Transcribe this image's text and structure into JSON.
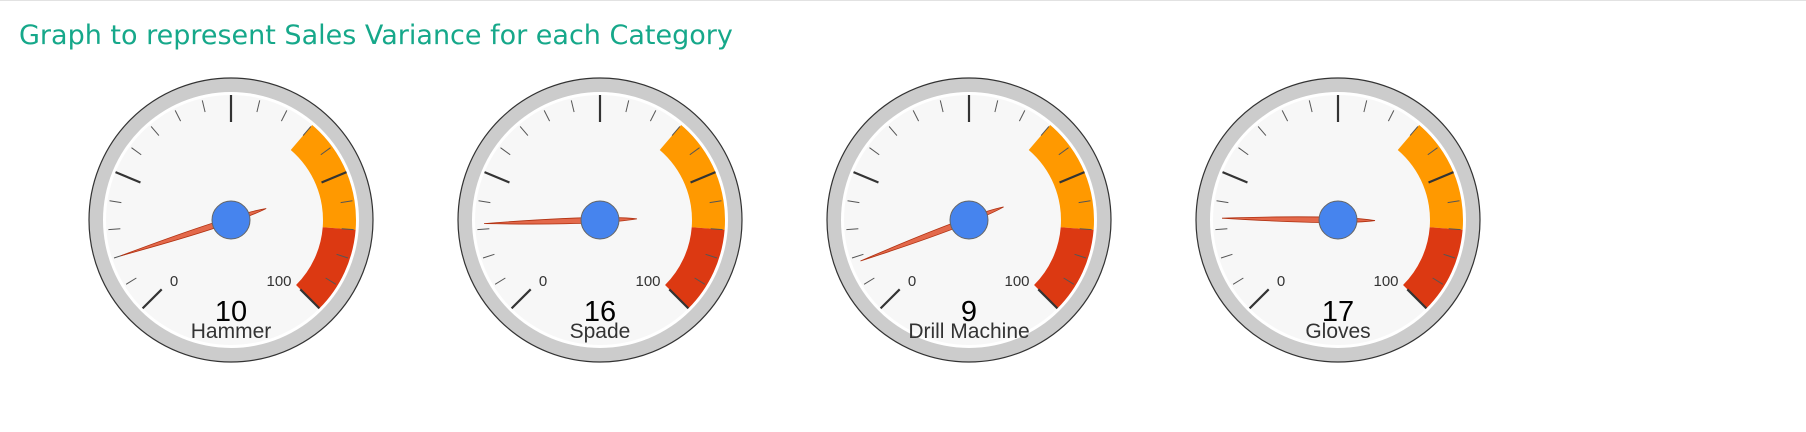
{
  "title": "Graph to represent Sales Variance for each Category",
  "chart_data": {
    "type": "gauge",
    "min": 0,
    "max": 100,
    "bands": [
      {
        "from": 65,
        "to": 85,
        "color": "#ff9900"
      },
      {
        "from": 85,
        "to": 100,
        "color": "#dc3912"
      }
    ],
    "gauges": [
      {
        "label": "Hammer",
        "value": 10
      },
      {
        "label": "Spade",
        "value": 16
      },
      {
        "label": "Drill Machine",
        "value": 9
      },
      {
        "label": "Gloves",
        "value": 17
      }
    ]
  },
  "colors": {
    "needle": "#dc3912",
    "hub": "#4684ee",
    "face": "#f7f7f7",
    "rim": "#cccccc",
    "ticks": "#333333"
  }
}
